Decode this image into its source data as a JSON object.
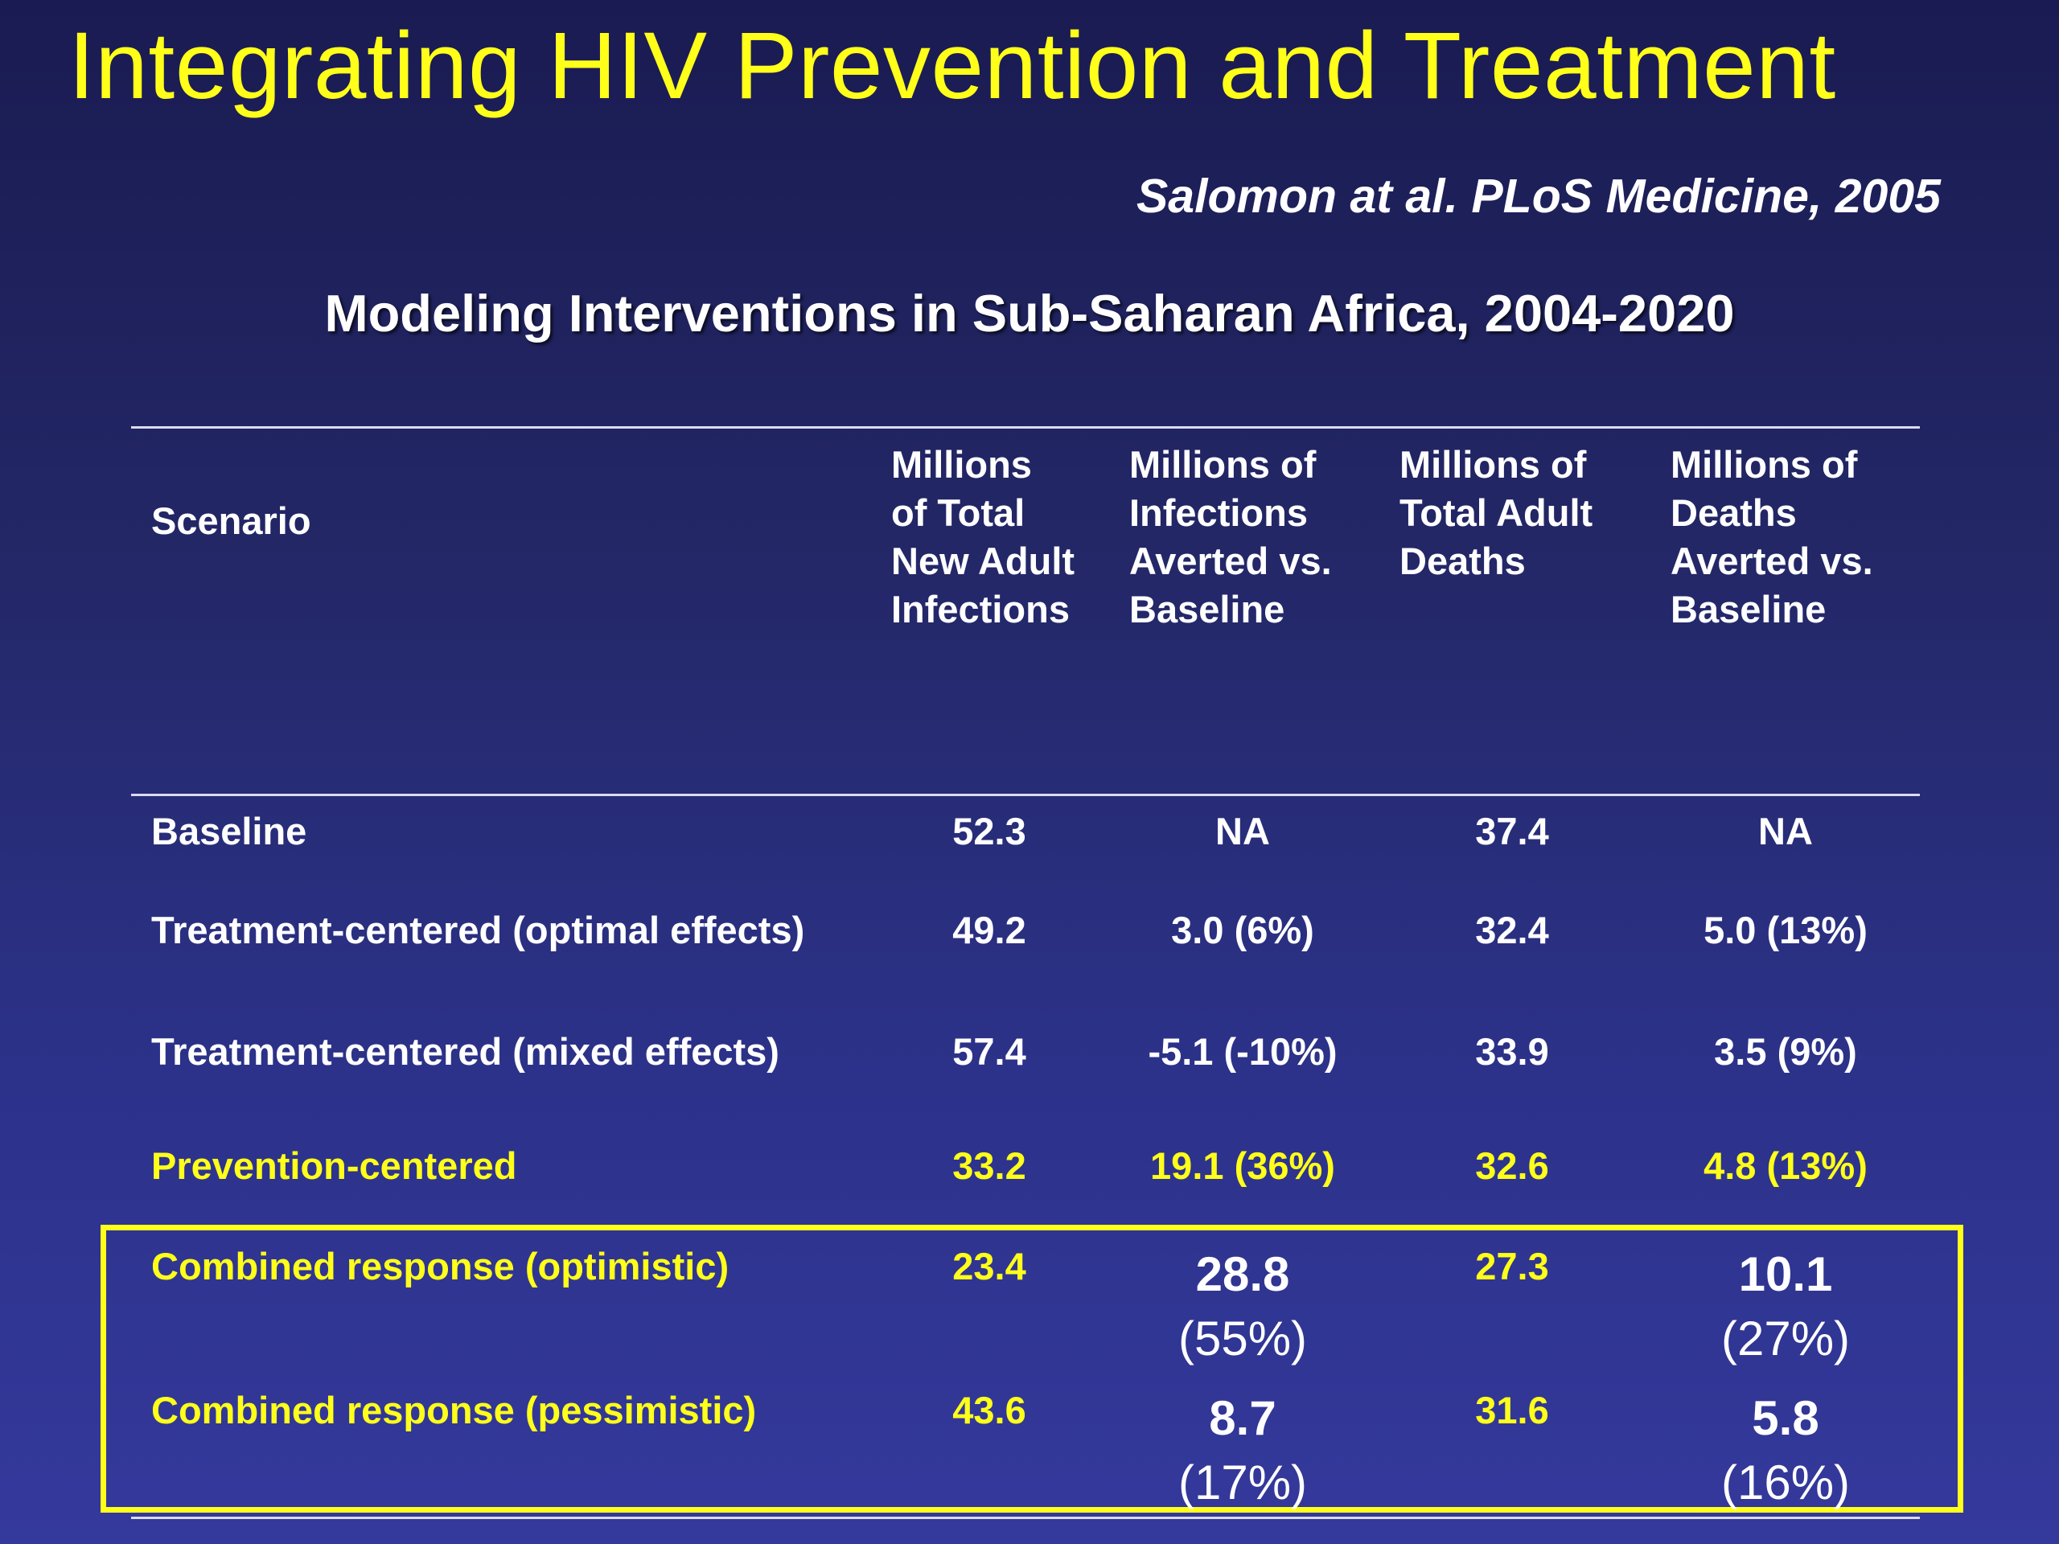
{
  "title": "Integrating HIV Prevention and Treatment",
  "citation": "Salomon at al. PLoS Medicine, 2005",
  "subtitle": "Modeling Interventions  in Sub-Saharan Africa, 2004-2020",
  "table": {
    "headers": {
      "scenario": "Scenario",
      "new_infections": [
        "Millions",
        "of Total",
        "New Adult",
        "Infections"
      ],
      "infections_averted": [
        "Millions of",
        "Infections",
        "Averted vs.",
        "Baseline"
      ],
      "adult_deaths": [
        "Millions of",
        "Total Adult",
        "Deaths"
      ],
      "deaths_averted": [
        "Millions of",
        "Deaths",
        "Averted vs.",
        "Baseline"
      ]
    },
    "rows": [
      {
        "scenario": "Baseline",
        "new_infections": "52.3",
        "infections_averted": "NA",
        "adult_deaths": "37.4",
        "deaths_averted": "NA"
      },
      {
        "scenario": "Treatment-centered (optimal effects)",
        "new_infections": "49.2",
        "infections_averted": "3.0 (6%)",
        "adult_deaths": "32.4",
        "deaths_averted": "5.0 (13%)"
      },
      {
        "scenario": "Treatment-centered (mixed effects)",
        "new_infections": "57.4",
        "infections_averted": "-5.1 (-10%)",
        "adult_deaths": "33.9",
        "deaths_averted": "3.5 (9%)"
      },
      {
        "scenario": "Prevention-centered",
        "new_infections": "33.2",
        "infections_averted": "19.1 (36%)",
        "adult_deaths": "32.6",
        "deaths_averted": "4.8 (13%)"
      },
      {
        "scenario": "Combined response (optimistic)",
        "new_infections": "23.4",
        "infections_averted": [
          "28.8",
          "(55%)"
        ],
        "adult_deaths": "27.3",
        "deaths_averted": [
          "10.1",
          "(27%)"
        ]
      },
      {
        "scenario": "Combined response (pessimistic)",
        "new_infections": "43.6",
        "infections_averted": [
          "8.7",
          "(17%)"
        ],
        "adult_deaths": "31.6",
        "deaths_averted": [
          "5.8",
          "(16%)"
        ]
      }
    ]
  },
  "colors": {
    "title": "#ffff1a",
    "highlight_rows": "#ffff1a",
    "highlight_box": "#ffff1a",
    "text": "#ffffff",
    "background_top": "#1a1b52",
    "background_bottom": "#34399c"
  }
}
